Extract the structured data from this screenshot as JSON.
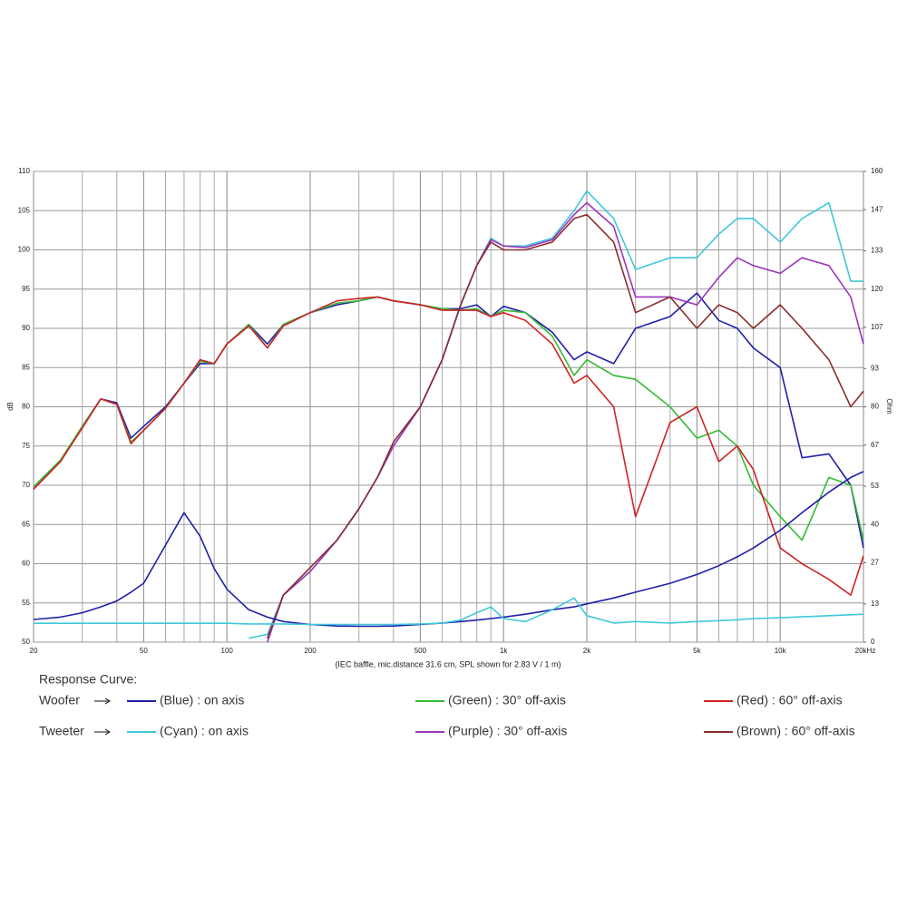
{
  "chart_data": {
    "type": "line",
    "x_label": "(IEC baffle, mic.distance 31.6 cm, SPL shown for 2.83 V / 1 m)",
    "y_label": "dB",
    "y2_label": "Ohm",
    "log_x": true,
    "grid": true,
    "xlim": [
      20,
      20000
    ],
    "xticks": [
      20,
      50,
      100,
      200,
      500,
      {
        "value": 1000,
        "label": "1k"
      },
      {
        "value": 2000,
        "label": "2k"
      },
      {
        "value": 5000,
        "label": "5k"
      },
      {
        "value": 10000,
        "label": "10k"
      },
      {
        "value": 20000,
        "label": "20kHz"
      }
    ],
    "x_minor_ticks": [
      30,
      40,
      60,
      70,
      80,
      90,
      300,
      400,
      600,
      700,
      800,
      900,
      3000,
      4000,
      6000,
      7000,
      8000,
      9000
    ],
    "ylim": [
      50,
      110
    ],
    "yticks": [
      50,
      55,
      60,
      65,
      70,
      75,
      80,
      85,
      90,
      95,
      100,
      105,
      110
    ],
    "y2lim": [
      0,
      160
    ],
    "y2ticks": [
      0,
      13,
      27,
      40,
      53,
      67,
      80,
      93,
      107,
      120,
      133,
      147,
      160
    ],
    "x": [
      20,
      25,
      30,
      35,
      40,
      45,
      50,
      60,
      70,
      80,
      90,
      100,
      120,
      140,
      160,
      200,
      250,
      300,
      350,
      400,
      500,
      600,
      700,
      800,
      900,
      1000,
      1200,
      1500,
      1800,
      2000,
      2500,
      3000,
      4000,
      5000,
      6000,
      7000,
      8000,
      10000,
      12000,
      15000,
      18000,
      20000
    ],
    "legend": {
      "title": "Response Curve:",
      "groups": [
        "Woofer",
        "Tweeter"
      ]
    },
    "series": [
      {
        "name": "(Blue) : on axis",
        "color": "#1f1fa8",
        "values": [
          69.5,
          73,
          77.5,
          81,
          80.5,
          76,
          77.5,
          80,
          83,
          85.5,
          85.5,
          88,
          90.5,
          88,
          90.5,
          92,
          93,
          93.5,
          94,
          93.5,
          93,
          92.5,
          92.5,
          93,
          91.5,
          92.8,
          92,
          89.5,
          86,
          87,
          85.5,
          90,
          91.5,
          94.5,
          91,
          90,
          87.5,
          85,
          73.5,
          74,
          70,
          62
        ]
      },
      {
        "name": "(Green) : 30° off-axis",
        "color": "#33bb33",
        "values": [
          69.8,
          73.2,
          77.5,
          81,
          80.3,
          75.5,
          77,
          79.8,
          83,
          85.8,
          85.5,
          88,
          90.5,
          87.5,
          90.5,
          92,
          93.2,
          93.5,
          94,
          93.5,
          93,
          92.5,
          92.3,
          92.5,
          91.5,
          92.3,
          92,
          89,
          84,
          86,
          84,
          83.5,
          80,
          76,
          77,
          75,
          70,
          66,
          63,
          71,
          70,
          63
        ]
      },
      {
        "name": "(Red) : 60° off-axis",
        "color": "#d02222",
        "values": [
          69.5,
          73,
          77.3,
          81,
          80.3,
          75.3,
          77,
          79.8,
          83,
          86,
          85.5,
          88,
          90.3,
          87.5,
          90.3,
          92,
          93.5,
          93.8,
          94,
          93.5,
          93,
          92.3,
          92.3,
          92.3,
          91.5,
          92,
          91,
          88,
          83,
          84,
          80,
          66,
          78,
          80,
          73,
          75,
          72,
          62,
          60,
          58,
          56,
          61
        ]
      },
      {
        "name": "(Cyan) : on axis",
        "color": "#40c8dc",
        "values": [
          null,
          null,
          null,
          null,
          null,
          null,
          null,
          null,
          null,
          null,
          null,
          null,
          50.5,
          51,
          56,
          59,
          63,
          67,
          71,
          75,
          80,
          86,
          93,
          98,
          101.5,
          100.5,
          100.5,
          101.5,
          105,
          107.5,
          104,
          97.5,
          99,
          99,
          102,
          104,
          104,
          101,
          104,
          106,
          96,
          96
        ]
      },
      {
        "name": "(Purple) : 30° off-axis",
        "color": "#9a36bc",
        "values": [
          null,
          null,
          null,
          null,
          null,
          null,
          null,
          null,
          null,
          null,
          null,
          null,
          null,
          50,
          56,
          59,
          63,
          67,
          71,
          75,
          80,
          86,
          93,
          98,
          101.3,
          100.5,
          100.3,
          101.3,
          104.5,
          106,
          103,
          94,
          94,
          93,
          96.5,
          99,
          98,
          97,
          99,
          98,
          94,
          88
        ]
      },
      {
        "name": "(Brown) : 60° off-axis",
        "color": "#8b2c2c",
        "values": [
          null,
          null,
          null,
          null,
          null,
          null,
          null,
          null,
          null,
          null,
          null,
          null,
          null,
          50.5,
          56,
          59.5,
          63,
          67,
          71,
          75.5,
          80,
          86,
          93,
          98,
          101,
          100,
          100,
          101,
          104,
          104.5,
          101,
          92,
          94,
          90,
          93,
          92,
          90,
          93,
          90,
          86,
          80,
          82
        ]
      },
      {
        "color": "#1f1fa8",
        "axis": "y2",
        "values": [
          7.7,
          8.5,
          10,
          12,
          14,
          17,
          20,
          33,
          44,
          36,
          25,
          18,
          11,
          8.5,
          7,
          6,
          5.5,
          5.4,
          5.4,
          5.5,
          6,
          6.5,
          7,
          7.5,
          8,
          8.5,
          9.5,
          11,
          12,
          13,
          15,
          17,
          20,
          23,
          26,
          29,
          32,
          38,
          44,
          51,
          56,
          58
        ]
      },
      {
        "color": "#40c8dc",
        "axis": "y2",
        "values": [
          6.4,
          6.4,
          6.4,
          6.4,
          6.4,
          6.4,
          6.4,
          6.4,
          6.4,
          6.4,
          6.4,
          6.4,
          6.2,
          6.2,
          6.2,
          6,
          6,
          6,
          6,
          6,
          6.2,
          6.5,
          7.5,
          10,
          12,
          8,
          7,
          11,
          15,
          9,
          6.5,
          7,
          6.5,
          7,
          7.3,
          7.6,
          8,
          8.3,
          8.6,
          9,
          9.3,
          9.5
        ]
      }
    ]
  }
}
